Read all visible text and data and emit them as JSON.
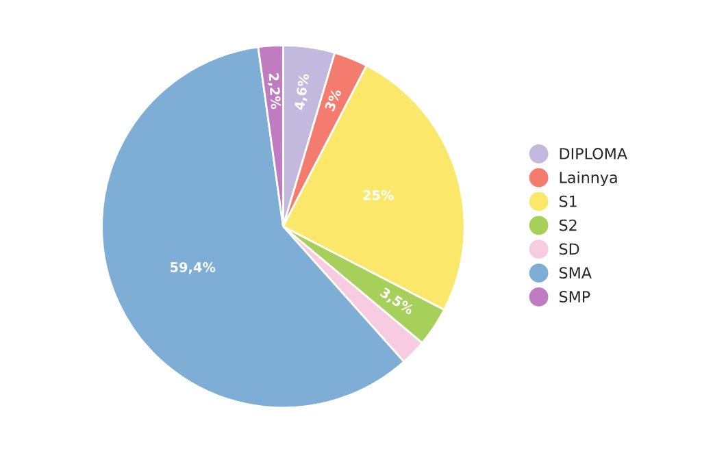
{
  "chart_data": {
    "type": "pie",
    "categories": [
      "DIPLOMA",
      "Lainnya",
      "S1",
      "S2",
      "SD",
      "SMA",
      "SMP"
    ],
    "values": [
      4.6,
      3,
      25,
      3.5,
      2.3,
      59.4,
      2.2
    ],
    "value_labels": [
      "4,6%",
      "3%",
      "25%",
      "3,5%",
      null,
      "59,4%",
      "2,2%"
    ],
    "colors": [
      "#c3b8dd",
      "#f47c6e",
      "#fbe86a",
      "#a6d05a",
      "#f7cbe0",
      "#7eadd6",
      "#c07cc0"
    ],
    "legend": "right"
  }
}
